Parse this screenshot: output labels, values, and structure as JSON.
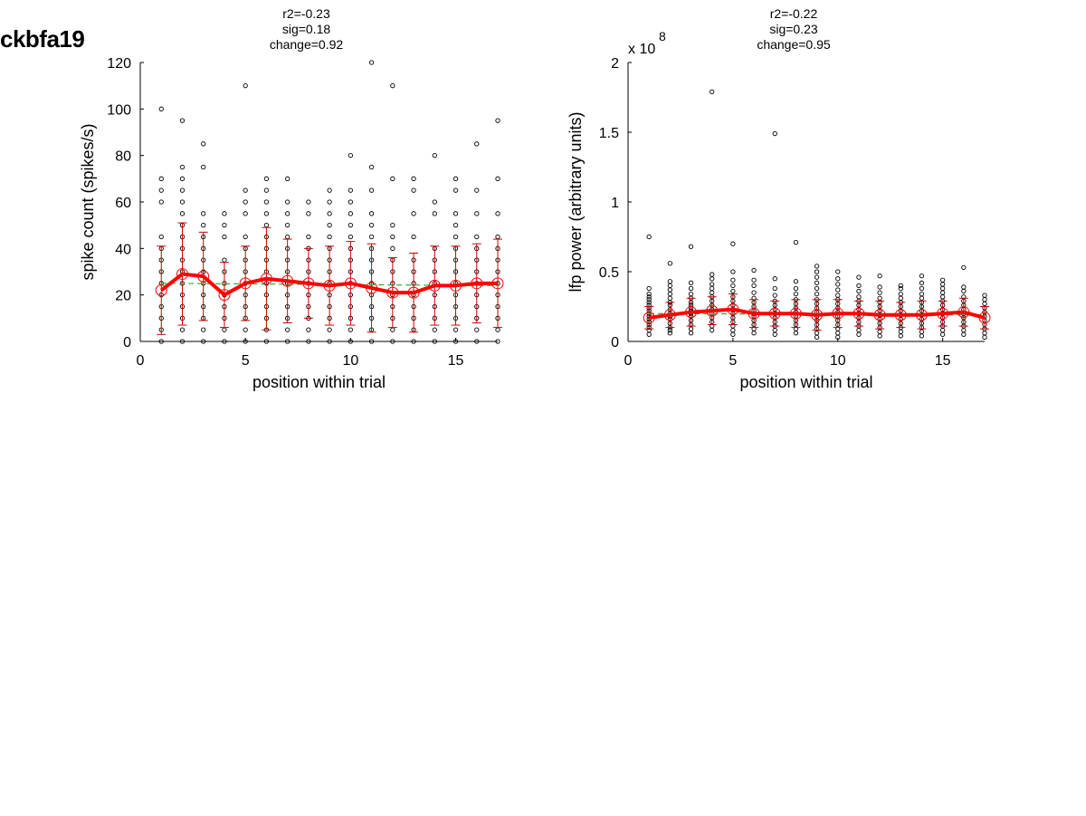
{
  "figure_title": "ckbfa19",
  "chart_data": [
    {
      "type": "scatter",
      "stats": [
        "r2=-0.23",
        "sig=0.18",
        "change=0.92"
      ],
      "xlabel": "position within trial",
      "ylabel": "spike count (spikes/s)",
      "xlim": [
        0,
        17
      ],
      "ylim": [
        0,
        120
      ],
      "xticks": [
        0,
        5,
        10,
        15
      ],
      "yticks": [
        0,
        20,
        40,
        60,
        80,
        100,
        120
      ],
      "xtick_labels": [
        "0",
        "5",
        "10",
        "15"
      ],
      "ytick_labels": [
        "0",
        "20",
        "40",
        "60",
        "80",
        "100",
        "120"
      ],
      "scale_label": "",
      "grid": false,
      "colors": {
        "points": "#000000",
        "mean": "#ff0000",
        "errorbar": "#cc0000",
        "fit": "#33aa33"
      },
      "trial_points": [
        {
          "x": 1,
          "y": [
            0,
            5,
            10,
            15,
            20,
            25,
            30,
            35,
            40,
            45,
            60,
            65,
            70,
            100
          ]
        },
        {
          "x": 2,
          "y": [
            0,
            5,
            10,
            15,
            20,
            25,
            30,
            35,
            40,
            45,
            50,
            55,
            60,
            65,
            70,
            75,
            95
          ]
        },
        {
          "x": 3,
          "y": [
            0,
            5,
            10,
            15,
            20,
            25,
            30,
            35,
            40,
            45,
            50,
            55,
            75,
            85
          ]
        },
        {
          "x": 4,
          "y": [
            0,
            5,
            10,
            15,
            20,
            25,
            30,
            35,
            45,
            50,
            55
          ]
        },
        {
          "x": 5,
          "y": [
            0,
            5,
            10,
            15,
            20,
            25,
            30,
            35,
            40,
            45,
            55,
            60,
            65,
            110
          ]
        },
        {
          "x": 6,
          "y": [
            0,
            5,
            10,
            15,
            20,
            25,
            30,
            35,
            40,
            45,
            50,
            55,
            60,
            65,
            70
          ]
        },
        {
          "x": 7,
          "y": [
            0,
            5,
            10,
            15,
            20,
            25,
            30,
            35,
            40,
            45,
            50,
            55,
            60,
            70
          ]
        },
        {
          "x": 8,
          "y": [
            0,
            5,
            10,
            15,
            20,
            25,
            30,
            35,
            40,
            45,
            55,
            60
          ]
        },
        {
          "x": 9,
          "y": [
            0,
            5,
            10,
            15,
            20,
            25,
            30,
            35,
            40,
            45,
            50,
            55,
            60,
            65
          ]
        },
        {
          "x": 10,
          "y": [
            0,
            5,
            10,
            15,
            20,
            25,
            30,
            35,
            40,
            45,
            50,
            55,
            60,
            65,
            80
          ]
        },
        {
          "x": 11,
          "y": [
            0,
            5,
            10,
            15,
            20,
            25,
            30,
            35,
            40,
            45,
            50,
            55,
            65,
            75,
            120
          ]
        },
        {
          "x": 12,
          "y": [
            0,
            5,
            10,
            15,
            20,
            25,
            30,
            35,
            40,
            45,
            50,
            70,
            110
          ]
        },
        {
          "x": 13,
          "y": [
            0,
            5,
            10,
            15,
            20,
            25,
            30,
            35,
            45,
            55,
            65,
            70
          ]
        },
        {
          "x": 14,
          "y": [
            0,
            5,
            10,
            15,
            20,
            25,
            30,
            35,
            40,
            55,
            60,
            80
          ]
        },
        {
          "x": 15,
          "y": [
            0,
            5,
            10,
            15,
            20,
            25,
            30,
            35,
            40,
            45,
            50,
            55,
            65,
            70
          ]
        },
        {
          "x": 16,
          "y": [
            0,
            5,
            10,
            15,
            20,
            25,
            30,
            35,
            40,
            45,
            55,
            65,
            85
          ]
        },
        {
          "x": 17,
          "y": [
            0,
            5,
            10,
            15,
            20,
            25,
            30,
            35,
            40,
            45,
            55,
            70,
            95
          ]
        }
      ],
      "mean": [
        22,
        29,
        28,
        20,
        25,
        27,
        26,
        25,
        24,
        25,
        23,
        21,
        21,
        24,
        24,
        25,
        25
      ],
      "sd": [
        19,
        22,
        19,
        14,
        16,
        22,
        18,
        15,
        17,
        18,
        19,
        15,
        17,
        17,
        17,
        17,
        19
      ],
      "fit": {
        "x": [
          1,
          17
        ],
        "y": [
          25,
          24
        ]
      }
    },
    {
      "type": "scatter",
      "stats": [
        "r2=-0.22",
        "sig=0.23",
        "change=0.95"
      ],
      "xlabel": "position within trial",
      "ylabel": "lfp power (arbitrary units)",
      "xlim": [
        0,
        17
      ],
      "ylim": [
        0,
        2
      ],
      "xticks": [
        0,
        5,
        10,
        15
      ],
      "yticks": [
        0,
        0.5,
        1,
        1.5,
        2
      ],
      "xtick_labels": [
        "0",
        "5",
        "10",
        "15"
      ],
      "ytick_labels": [
        "0",
        "0.5",
        "1",
        "1.5",
        "2"
      ],
      "scale_label": "x 10",
      "scale_exponent": "8",
      "grid": false,
      "colors": {
        "points": "#000000",
        "mean": "#ff0000",
        "errorbar": "#cc0000",
        "fit": "#33aa33"
      },
      "trial_points": [
        {
          "x": 1,
          "y": [
            0.05,
            0.08,
            0.1,
            0.12,
            0.14,
            0.16,
            0.18,
            0.2,
            0.22,
            0.24,
            0.26,
            0.28,
            0.3,
            0.32,
            0.34,
            0.38,
            0.75
          ]
        },
        {
          "x": 2,
          "y": [
            0.06,
            0.08,
            0.1,
            0.13,
            0.16,
            0.18,
            0.2,
            0.23,
            0.26,
            0.28,
            0.31,
            0.34,
            0.37,
            0.4,
            0.43,
            0.56
          ]
        },
        {
          "x": 3,
          "y": [
            0.06,
            0.09,
            0.12,
            0.15,
            0.18,
            0.2,
            0.22,
            0.24,
            0.26,
            0.28,
            0.31,
            0.34,
            0.38,
            0.42,
            0.68
          ]
        },
        {
          "x": 4,
          "y": [
            0.08,
            0.11,
            0.14,
            0.17,
            0.2,
            0.23,
            0.26,
            0.29,
            0.32,
            0.35,
            0.38,
            0.41,
            0.45,
            0.48,
            1.79
          ]
        },
        {
          "x": 5,
          "y": [
            0.05,
            0.08,
            0.11,
            0.14,
            0.17,
            0.2,
            0.23,
            0.26,
            0.29,
            0.32,
            0.36,
            0.4,
            0.44,
            0.5,
            0.7
          ]
        },
        {
          "x": 6,
          "y": [
            0.06,
            0.09,
            0.12,
            0.15,
            0.18,
            0.2,
            0.22,
            0.25,
            0.28,
            0.31,
            0.35,
            0.4,
            0.44,
            0.51
          ]
        },
        {
          "x": 7,
          "y": [
            0.05,
            0.08,
            0.11,
            0.14,
            0.17,
            0.2,
            0.23,
            0.26,
            0.29,
            0.33,
            0.38,
            0.45,
            1.49
          ]
        },
        {
          "x": 8,
          "y": [
            0.06,
            0.09,
            0.12,
            0.15,
            0.18,
            0.21,
            0.24,
            0.27,
            0.3,
            0.34,
            0.38,
            0.43,
            0.71
          ]
        },
        {
          "x": 9,
          "y": [
            0.03,
            0.06,
            0.09,
            0.12,
            0.15,
            0.18,
            0.21,
            0.24,
            0.27,
            0.3,
            0.34,
            0.38,
            0.42,
            0.46,
            0.5,
            0.54
          ]
        },
        {
          "x": 10,
          "y": [
            0.03,
            0.06,
            0.09,
            0.12,
            0.15,
            0.18,
            0.21,
            0.24,
            0.27,
            0.3,
            0.33,
            0.37,
            0.41,
            0.45,
            0.5
          ]
        },
        {
          "x": 11,
          "y": [
            0.05,
            0.08,
            0.11,
            0.14,
            0.17,
            0.2,
            0.23,
            0.26,
            0.29,
            0.32,
            0.36,
            0.4,
            0.46
          ]
        },
        {
          "x": 12,
          "y": [
            0.04,
            0.07,
            0.1,
            0.13,
            0.16,
            0.19,
            0.22,
            0.25,
            0.28,
            0.31,
            0.35,
            0.39,
            0.47
          ]
        },
        {
          "x": 13,
          "y": [
            0.04,
            0.07,
            0.1,
            0.13,
            0.16,
            0.19,
            0.22,
            0.25,
            0.28,
            0.31,
            0.34,
            0.38,
            0.4
          ]
        },
        {
          "x": 14,
          "y": [
            0.04,
            0.07,
            0.1,
            0.13,
            0.16,
            0.19,
            0.22,
            0.25,
            0.28,
            0.31,
            0.34,
            0.38,
            0.42,
            0.47
          ]
        },
        {
          "x": 15,
          "y": [
            0.05,
            0.08,
            0.11,
            0.14,
            0.17,
            0.2,
            0.23,
            0.26,
            0.29,
            0.32,
            0.35,
            0.38,
            0.41,
            0.44
          ]
        },
        {
          "x": 16,
          "y": [
            0.05,
            0.08,
            0.11,
            0.14,
            0.17,
            0.2,
            0.23,
            0.26,
            0.29,
            0.32,
            0.36,
            0.39,
            0.53
          ]
        },
        {
          "x": 17,
          "y": [
            0.03,
            0.06,
            0.09,
            0.12,
            0.15,
            0.18,
            0.21,
            0.24,
            0.27,
            0.3,
            0.33
          ]
        }
      ],
      "mean": [
        0.17,
        0.19,
        0.21,
        0.22,
        0.23,
        0.2,
        0.2,
        0.2,
        0.19,
        0.2,
        0.2,
        0.19,
        0.19,
        0.19,
        0.2,
        0.21,
        0.17
      ],
      "sd": [
        0.08,
        0.09,
        0.1,
        0.1,
        0.11,
        0.1,
        0.09,
        0.1,
        0.11,
        0.1,
        0.09,
        0.1,
        0.09,
        0.1,
        0.09,
        0.1,
        0.08
      ],
      "fit": {
        "x": [
          1,
          17
        ],
        "y": [
          0.2,
          0.19
        ]
      }
    }
  ]
}
